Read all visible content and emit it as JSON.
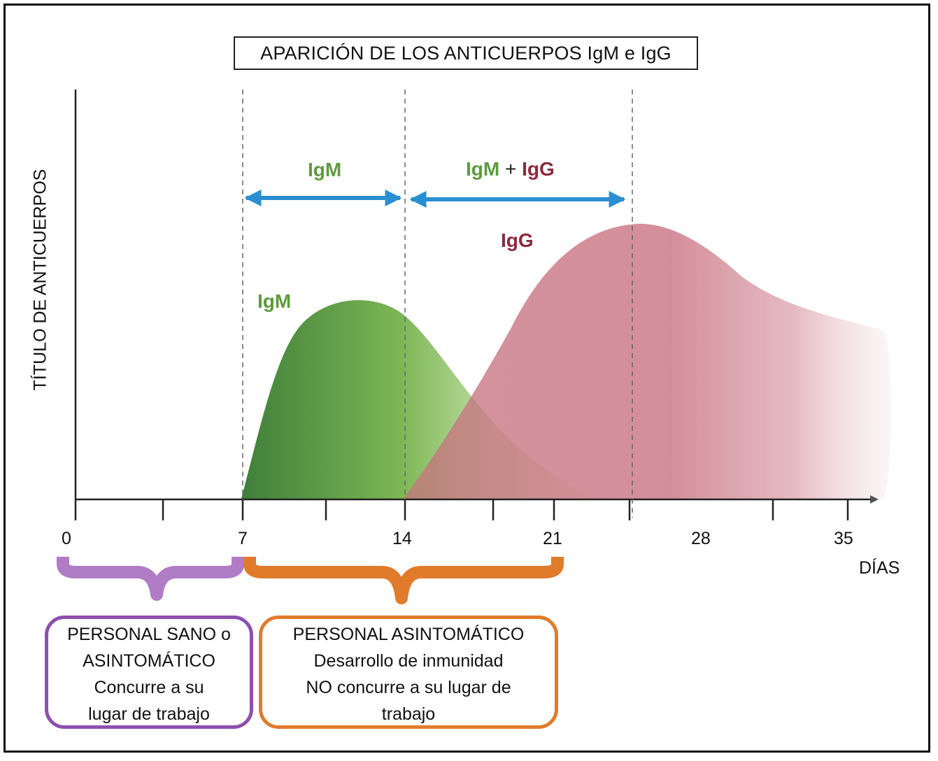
{
  "title": "APARICIÓN DE LOS ANTICUERPOS IgM e IgG",
  "y_axis_label": "TÍTULO DE ANTICUERPOS",
  "x_axis_label": "DÍAS",
  "x_ticks": [
    "0",
    "7",
    "14",
    "21",
    "28",
    "35"
  ],
  "arrows": {
    "left_label": "IgM",
    "right_label_igm": "IgM",
    "right_label_plus": " + ",
    "right_label_igg": "IgG"
  },
  "curve_labels": {
    "igm": "IgM",
    "igg": "IgG"
  },
  "boxes": {
    "left": {
      "lines": [
        "PERSONAL SANO o",
        "ASINTOMÁTICO",
        "Concurre a su",
        "lugar de trabajo"
      ]
    },
    "right": {
      "lines": [
        "PERSONAL ASINTOMÁTICO",
        "Desarrollo de inmunidad",
        "NO concurre a su lugar de",
        "trabajo"
      ]
    }
  },
  "colors": {
    "igm": "#5e9a3e",
    "igg": "#c56a77",
    "arrow": "#2a8fd0",
    "purple": "#8e4fae",
    "purple_brace": "#b07cc6",
    "orange": "#e07b2b",
    "igg_text": "#8a2b3f"
  },
  "chart_data": {
    "type": "area",
    "xlabel": "DÍAS",
    "ylabel": "TÍTULO DE ANTICUERPOS",
    "xlim": [
      0,
      36
    ],
    "x_ticks": [
      0,
      7,
      14,
      21,
      28,
      35
    ],
    "dashed_markers_days": [
      7,
      14,
      24
    ],
    "series": [
      {
        "name": "IgM",
        "x": [
          7,
          8,
          9,
          10,
          11,
          12,
          13,
          14,
          15,
          17,
          19,
          21,
          22
        ],
        "y": [
          0,
          0.3,
          0.55,
          0.71,
          0.75,
          0.74,
          0.66,
          0.55,
          0.42,
          0.25,
          0.12,
          0.04,
          0
        ]
      },
      {
        "name": "IgG",
        "x": [
          14,
          16,
          18,
          20,
          22,
          24,
          25,
          26,
          28,
          30,
          33,
          36
        ],
        "y": [
          0,
          0.12,
          0.35,
          0.65,
          0.88,
          0.99,
          1.0,
          0.98,
          0.88,
          0.77,
          0.68,
          0.62
        ]
      }
    ]
  }
}
